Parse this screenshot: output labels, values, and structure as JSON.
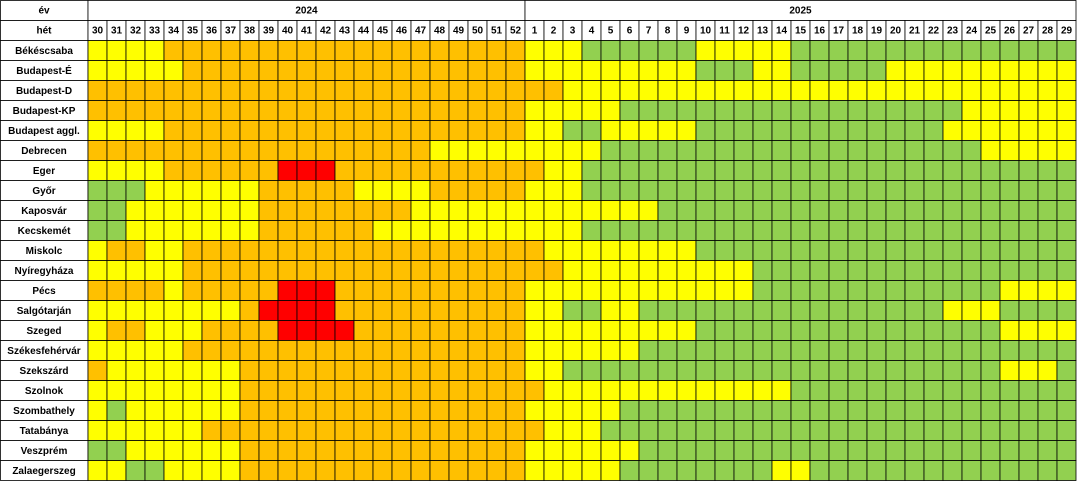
{
  "header": {
    "year_label": "év",
    "week_label": "hét",
    "years": [
      {
        "label": "2024",
        "weeks": [
          30,
          31,
          32,
          33,
          34,
          35,
          36,
          37,
          38,
          39,
          40,
          41,
          42,
          43,
          44,
          45,
          46,
          47,
          48,
          49,
          50,
          51,
          52
        ]
      },
      {
        "label": "2025",
        "weeks": [
          1,
          2,
          3,
          4,
          5,
          6,
          7,
          8,
          9,
          10,
          11,
          12,
          13,
          14,
          15,
          16,
          17,
          18,
          19,
          20,
          21,
          22,
          23,
          24,
          25,
          26,
          27,
          28,
          29
        ]
      }
    ]
  },
  "palette": {
    "G": "#92d050",
    "Y": "#ffff00",
    "O": "#ffc000",
    "R": "#ff0000"
  },
  "rows": [
    {
      "name": "Békéscsaba",
      "cells": "YYYYOOOOOOOOOOOOOOOOOOOYYYGGGGGGYYYYYGGGGGGGGGGGGGGG"
    },
    {
      "name": "Budapest-É",
      "cells": "YYYYYOOOOOOOOOOOOOOOOOOYYYYYYYYYGGGYYGGGGGYYYYYYYYYY"
    },
    {
      "name": "Budapest-D",
      "cells": "OOOOOOOOOOOOOOOOOOOOOOOOOYYYYYYYYYYYYYYYYYYYYYYYYYYY"
    },
    {
      "name": "Budapest-KP",
      "cells": "OOOOOOOOOOOOOOOOOOOOOOOYYYYYGGGGGGGGGGGGGGGGGGYYYYYY"
    },
    {
      "name": "Budapest aggl.",
      "cells": "YYYYOOOOOOOOOOOOOOOOOOOYYGGYYYYYGGGGGGGGGGGGGYYYYYYY"
    },
    {
      "name": "Debrecen",
      "cells": "OOOOOOOOOOOOOOOOOOYYYYYYYYYGGGGGGGGGGGGGGGGGGGGYYYYY"
    },
    {
      "name": "Eger",
      "cells": "YYYYOOOOOORRROOOOOOOOOOOYYGGGGGGGGGGGGGGGGGGGGGGGGGG"
    },
    {
      "name": "Győr",
      "cells": "GGGYYYYYYOOOOOYYYYOOOOOYYYGGGGGGGGGGGGGGGGGGGGGGGGGG"
    },
    {
      "name": "Kaposvár",
      "cells": "GGYYYYYYYOOOOOOOOYYYYYYYYYYYYYGGGGGGGGGGGGGGGGGGGGGG"
    },
    {
      "name": "Kecskemét",
      "cells": "GGYYYYYYYOOOOOOYYYYYYYYYYYGGGGGGGGGGGGGGGGGGGGGGGGGG"
    },
    {
      "name": "Miskolc",
      "cells": "YOOYYOOOOOOOOOOOOOOOOOOOYYYYYYYYGGGGGGGGGGGGGGGGGGGG"
    },
    {
      "name": "Nyíregyháza",
      "cells": "YYYYYOOOOOOOOOOOOOOOOOOOOYYYYYYYYYYGGGGGGGGGGGGGGGGG"
    },
    {
      "name": "Pécs",
      "cells": "OOOOYOOOOORRROOOOOOOOOOYYYYYYYYYYYYGGGGGGGGGGGGGYYYY"
    },
    {
      "name": "Salgótarján",
      "cells": "YYYYYYYYORRRROOOOOOOOOOYYGGYYGGGGGGGGGGGGGGGGYYYGGGG"
    },
    {
      "name": "Szeged",
      "cells": "YOOYYYOOOORRRROOOOOOOOOYYYYYYYYYGGGGGGGGGGGGGGGGYYYY"
    },
    {
      "name": "Székesfehérvár",
      "cells": "YYYYYOOOOOOOOOOOOOOOOOOYYYYYYGGGGGGGGGGGGGGGGGGGGGGG"
    },
    {
      "name": "Szekszárd",
      "cells": "OYYYYYYYOOOOOOOOOOOOOOOYYGGGGGGGGGGGGGGGGGGGGGGGYYYG"
    },
    {
      "name": "Szolnok",
      "cells": "YYYYYYYYOOOOOOOOOOOOOOOOYYYYYYYYYYYYYGGGGGGGGGGGGGGG"
    },
    {
      "name": "Szombathely",
      "cells": "YGYYYYYYOOOOOOOOOOOOOOOYYYYYGGGGGGGGGGGGGGGGGGGGGGGG"
    },
    {
      "name": "Tatabánya",
      "cells": "YYYYYYOOOOOOOOOOOOOOOOOOYYYGGGGGGGGGGGGGGGGGGGGGGGGG"
    },
    {
      "name": "Veszprém",
      "cells": "GGYYYYYYOOOOOOOOOOOOOOOYYYYYYGGGGGGGGGGGGGGGGGGGGGGG"
    },
    {
      "name": "Zalaegerszeg",
      "cells": "YYGGYYYYOOOOOOOOOOOOOOOYYYYYGGGGGGGGYYGGGGGGGGGGGGGG"
    }
  ]
}
